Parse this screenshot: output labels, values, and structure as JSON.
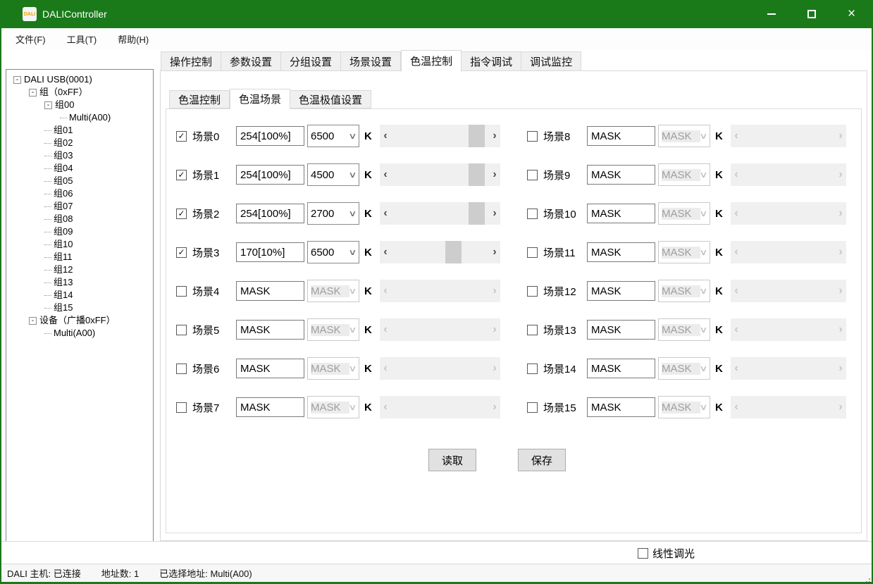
{
  "window": {
    "title": "DALIController",
    "icon_text": "DALI",
    "controls": {
      "minimize": "minimize",
      "maximize": "maximize",
      "close_glyph": "×"
    }
  },
  "colors": {
    "titlebar_green": "#1a7a1a",
    "scrollbar_track": "#f0f0f0",
    "scrollbar_thumb": "#cdcdcd",
    "disabled_text": "#9e9e9e",
    "button_face": "#e1e1e1"
  },
  "menu": {
    "items": [
      "文件(F)",
      "工具(T)",
      "帮助(H)"
    ]
  },
  "tree": {
    "nodes": [
      {
        "label": "DALI USB(0001)",
        "level": 0,
        "expand": true
      },
      {
        "label": "组（0xFF）",
        "level": 1,
        "expand": true
      },
      {
        "label": "组00",
        "level": 2,
        "expand": true
      },
      {
        "label": "Multi(A00)",
        "level": 3,
        "expand": false
      },
      {
        "label": "组01",
        "level": 2,
        "expand": false
      },
      {
        "label": "组02",
        "level": 2,
        "expand": false
      },
      {
        "label": "组03",
        "level": 2,
        "expand": false
      },
      {
        "label": "组04",
        "level": 2,
        "expand": false
      },
      {
        "label": "组05",
        "level": 2,
        "expand": false
      },
      {
        "label": "组06",
        "level": 2,
        "expand": false
      },
      {
        "label": "组07",
        "level": 2,
        "expand": false
      },
      {
        "label": "组08",
        "level": 2,
        "expand": false
      },
      {
        "label": "组09",
        "level": 2,
        "expand": false
      },
      {
        "label": "组10",
        "level": 2,
        "expand": false
      },
      {
        "label": "组11",
        "level": 2,
        "expand": false
      },
      {
        "label": "组12",
        "level": 2,
        "expand": false
      },
      {
        "label": "组13",
        "level": 2,
        "expand": false
      },
      {
        "label": "组14",
        "level": 2,
        "expand": false
      },
      {
        "label": "组15",
        "level": 2,
        "expand": false
      },
      {
        "label": "设备（广播0xFF）",
        "level": 1,
        "expand": true
      },
      {
        "label": "Multi(A00)",
        "level": 2,
        "expand": false
      }
    ]
  },
  "tabs": {
    "items": [
      "操作控制",
      "参数设置",
      "分组设置",
      "场景设置",
      "色温控制",
      "指令调试",
      "调试监控"
    ],
    "active_index": 4
  },
  "subtabs": {
    "items": [
      "色温控制",
      "色温场景",
      "色温极值设置"
    ],
    "active_index": 1
  },
  "scene_panel": {
    "unit_label": "K",
    "check_glyph": "✓",
    "combo_chevron_glyph": "∨",
    "scroll_left_glyph": "‹",
    "scroll_right_glyph": "›",
    "left": [
      {
        "label": "场景0",
        "checked": true,
        "value": "254[100%]",
        "temp": "6500",
        "enabled": true,
        "thumb_pct": 95
      },
      {
        "label": "场景1",
        "checked": true,
        "value": "254[100%]",
        "temp": "4500",
        "enabled": true,
        "thumb_pct": 95
      },
      {
        "label": "场景2",
        "checked": true,
        "value": "254[100%]",
        "temp": "2700",
        "enabled": true,
        "thumb_pct": 95
      },
      {
        "label": "场景3",
        "checked": true,
        "value": "170[10%]",
        "temp": "6500",
        "enabled": true,
        "thumb_pct": 66
      },
      {
        "label": "场景4",
        "checked": false,
        "value": "MASK",
        "temp": "MASK",
        "enabled": false,
        "thumb_pct": null
      },
      {
        "label": "场景5",
        "checked": false,
        "value": "MASK",
        "temp": "MASK",
        "enabled": false,
        "thumb_pct": null
      },
      {
        "label": "场景6",
        "checked": false,
        "value": "MASK",
        "temp": "MASK",
        "enabled": false,
        "thumb_pct": null
      },
      {
        "label": "场景7",
        "checked": false,
        "value": "MASK",
        "temp": "MASK",
        "enabled": false,
        "thumb_pct": null
      }
    ],
    "right": [
      {
        "label": "场景8",
        "checked": false,
        "value": "MASK",
        "temp": "MASK",
        "enabled": false,
        "thumb_pct": null
      },
      {
        "label": "场景9",
        "checked": false,
        "value": "MASK",
        "temp": "MASK",
        "enabled": false,
        "thumb_pct": null
      },
      {
        "label": "场景10",
        "checked": false,
        "value": "MASK",
        "temp": "MASK",
        "enabled": false,
        "thumb_pct": null
      },
      {
        "label": "场景11",
        "checked": false,
        "value": "MASK",
        "temp": "MASK",
        "enabled": false,
        "thumb_pct": null
      },
      {
        "label": "场景12",
        "checked": false,
        "value": "MASK",
        "temp": "MASK",
        "enabled": false,
        "thumb_pct": null
      },
      {
        "label": "场景13",
        "checked": false,
        "value": "MASK",
        "temp": "MASK",
        "enabled": false,
        "thumb_pct": null
      },
      {
        "label": "场景14",
        "checked": false,
        "value": "MASK",
        "temp": "MASK",
        "enabled": false,
        "thumb_pct": null
      },
      {
        "label": "场景15",
        "checked": false,
        "value": "MASK",
        "temp": "MASK",
        "enabled": false,
        "thumb_pct": null
      }
    ]
  },
  "buttons": {
    "read": "读取",
    "save": "保存"
  },
  "footer": {
    "linear_dim_label": "线性调光",
    "linear_dim_checked": false
  },
  "statusbar": {
    "host": "DALI 主机: 已连接",
    "addr_count": "地址数: 1",
    "selected": "已选择地址: Multi(A00)"
  }
}
